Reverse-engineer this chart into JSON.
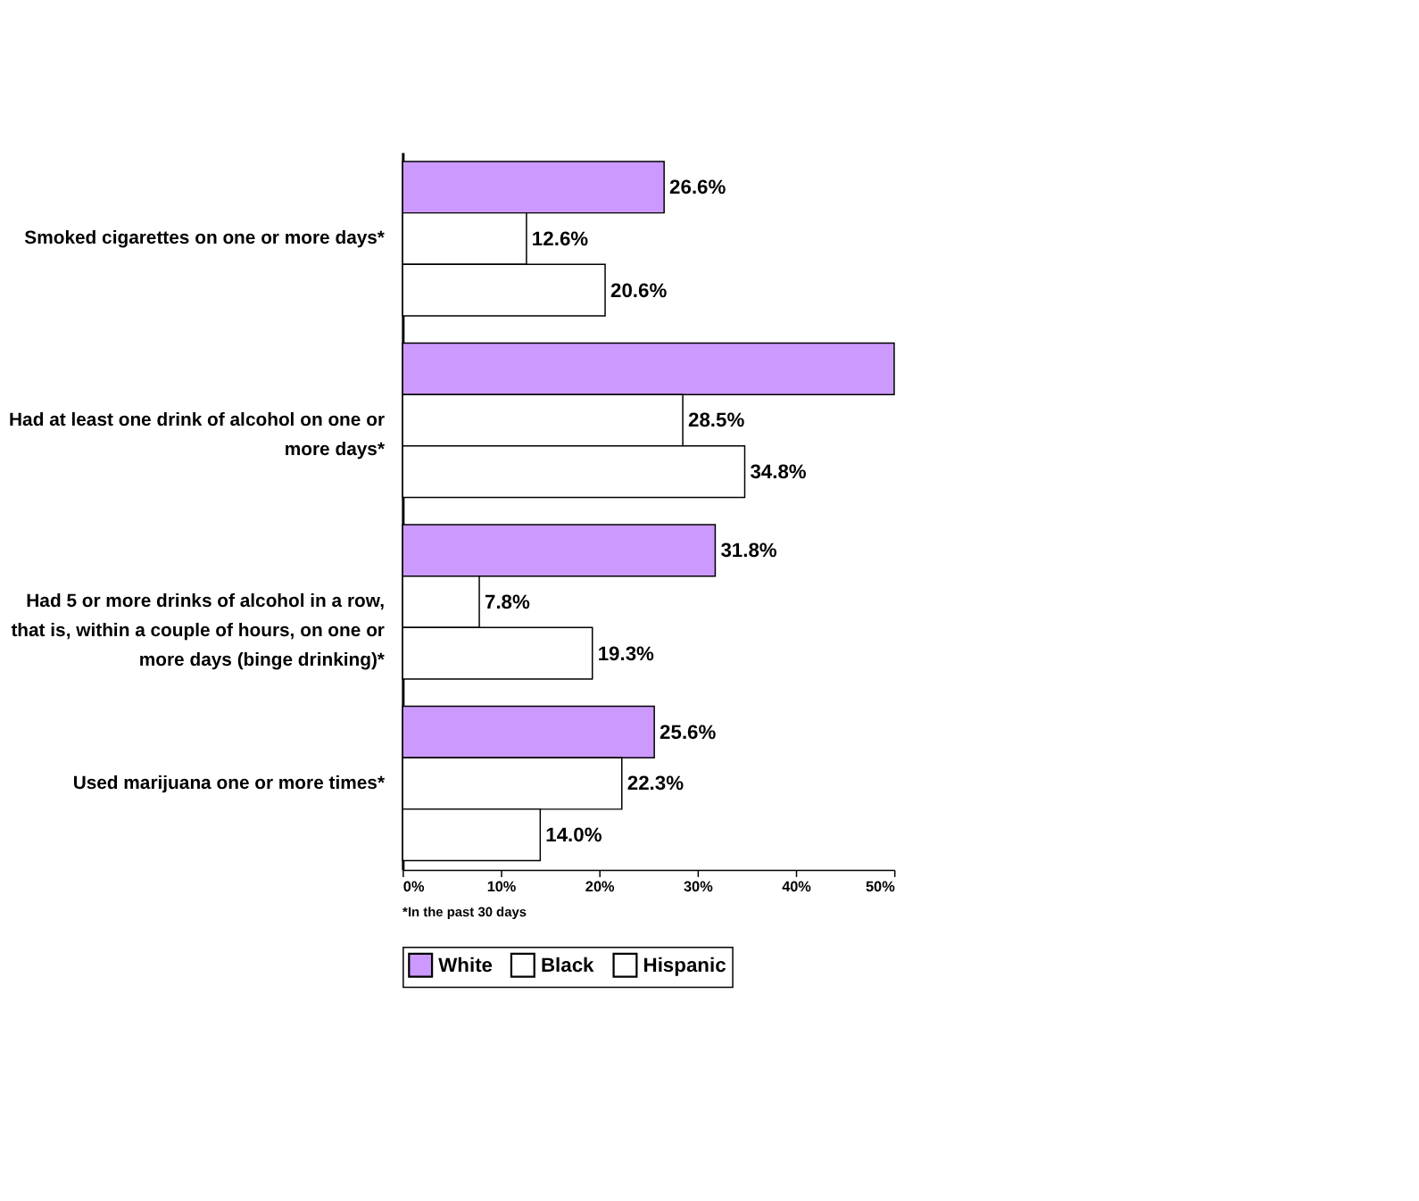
{
  "chart_data": {
    "type": "bar",
    "orientation": "horizontal",
    "categories": [
      "Smoked cigarettes on one or more days*",
      "Had at least one drink of alcohol on one or more days*",
      "Had 5 or more drinks of alcohol in a row, that is, within a couple of hours, on one or more days (binge drinking)*",
      "Used marijuana one or more times*"
    ],
    "series": [
      {
        "name": "White",
        "color": "#cc99ff",
        "values": [
          26.6,
          50,
          31.8,
          25.6
        ],
        "value_labels": [
          "26.6%",
          null,
          "31.8%",
          "25.6%"
        ]
      },
      {
        "name": "Black",
        "color": "#ffffff",
        "values": [
          12.6,
          28.5,
          7.8,
          22.3
        ],
        "value_labels": [
          "12.6%",
          "28.5%",
          "7.8%",
          "22.3%"
        ]
      },
      {
        "name": "Hispanic",
        "color": "#ffffff",
        "values": [
          20.6,
          34.8,
          19.3,
          14.0
        ],
        "value_labels": [
          "20.6%",
          "34.8%",
          "19.3%",
          "14.0%"
        ]
      }
    ],
    "xlim": [
      0,
      50
    ],
    "xticks": [
      {
        "value": 0,
        "label": "0%"
      },
      {
        "value": 10,
        "label": "10%"
      },
      {
        "value": 20,
        "label": "20%"
      },
      {
        "value": 30,
        "label": "30%"
      },
      {
        "value": 40,
        "label": "40%"
      },
      {
        "value": 50,
        "label": "50%"
      }
    ],
    "legend": "bottom",
    "grid": false,
    "annotations": [
      "*In the past 30 days"
    ]
  }
}
